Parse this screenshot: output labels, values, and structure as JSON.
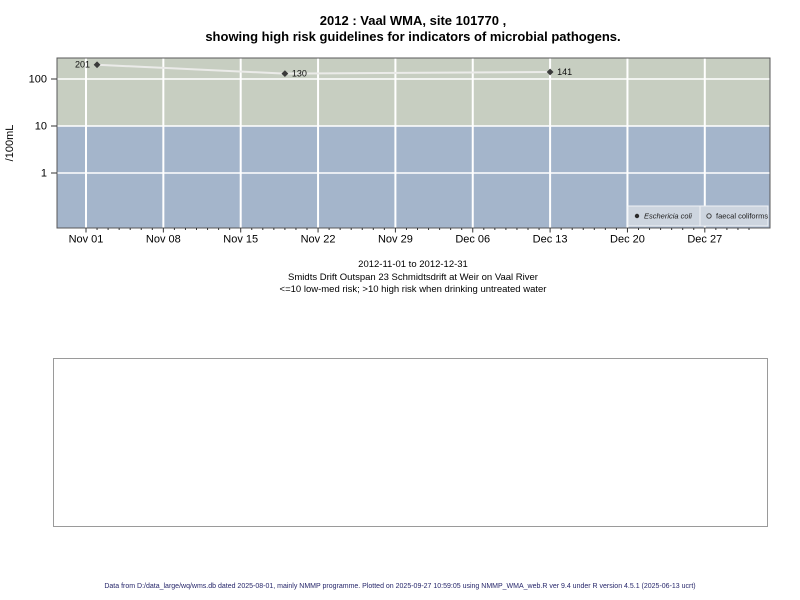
{
  "title": {
    "line1": "2012 : Vaal WMA, site 101770 ,",
    "line2": "showing high risk guidelines for indicators of microbial pathogens."
  },
  "subtitle": {
    "line1": "2012-11-01 to 2012-12-31",
    "line2": "Smidts Drift Outspan 23 Schmidtsdrift at Weir on Vaal River",
    "line3": "<=10 low-med risk; >10 high risk when drinking untreated water"
  },
  "footer": "Data from D:/data_large/wq/wms.db dated 2025-08-01, mainly NMMP programme. Plotted on 2025-09-27 10:59:05 using NMMP_WMA_web.R ver 9.4 under R version 4.5.1 (2025-06-13 ucrt)",
  "chart_data": {
    "type": "line",
    "title": "2012 : Vaal WMA, site 101770 , showing high risk guidelines for indicators of microbial pathogens.",
    "ylabel": "/100mL",
    "y_scale": "log10",
    "y_ticks": [
      {
        "value": 100,
        "label": "100"
      },
      {
        "value": 10,
        "label": "10"
      },
      {
        "value": 1,
        "label": "1"
      }
    ],
    "x_range": "2012-11-01 to 2012-12-31",
    "x_ticks": [
      {
        "label": "Nov 01",
        "day_offset": 0
      },
      {
        "label": "Nov 08",
        "day_offset": 7
      },
      {
        "label": "Nov 15",
        "day_offset": 14
      },
      {
        "label": "Nov 22",
        "day_offset": 21
      },
      {
        "label": "Nov 29",
        "day_offset": 28
      },
      {
        "label": "Dec 06",
        "day_offset": 35
      },
      {
        "label": "Dec 13",
        "day_offset": 42
      },
      {
        "label": "Dec 20",
        "day_offset": 49
      },
      {
        "label": "Dec 27",
        "day_offset": 56
      }
    ],
    "x_total_days": 60,
    "risk_bands": [
      {
        "name": "high-risk",
        "rule": ">10 high risk",
        "color": "#c7cec1",
        "from": 10,
        "to": "top"
      },
      {
        "name": "low-med-risk",
        "rule": "<=10 low-med risk",
        "color": "#a4b5cb",
        "from": "bottom",
        "to": 10
      }
    ],
    "series": [
      {
        "name": "Eschericia coli",
        "marker": "filled-diamond",
        "line_color": "#ebebe9",
        "marker_color": "#3a3a3a",
        "points": [
          {
            "approx_date": "2012-11-02",
            "day_offset": 1,
            "value": 201,
            "label": "201",
            "label_side": "left"
          },
          {
            "approx_date": "2012-11-19",
            "day_offset": 18,
            "value": 130,
            "label": "130",
            "label_side": "right"
          },
          {
            "approx_date": "2012-12-13",
            "day_offset": 42,
            "value": 141,
            "label": "141",
            "label_side": "right"
          }
        ]
      },
      {
        "name": "faecal coliforms",
        "marker": "open-circle",
        "points": []
      }
    ],
    "legend": {
      "position": "bottom-right",
      "entries": [
        {
          "label": "Eschericia coli",
          "marker": "filled-circle",
          "italic": true
        },
        {
          "label": "faecal coliforms",
          "marker": "open-circle",
          "italic": false
        }
      ]
    },
    "grid": "weekly vertical + decade horizontal, white"
  }
}
